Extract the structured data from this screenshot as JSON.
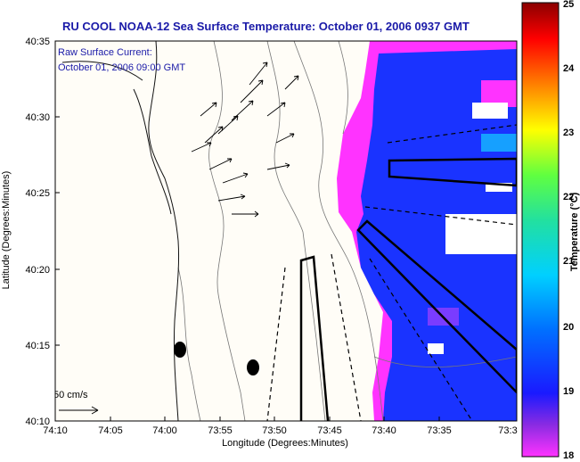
{
  "title": "RU COOL  NOAA-12  Sea Surface Temperature:  October 01, 2006 0937 GMT",
  "current_label_line1": "Raw Surface Current:",
  "current_label_line2": "October 01, 2006 09:00 GMT",
  "scale_label": "50 cm/s",
  "x_axis_label": "Longitude (Degrees:Minutes)",
  "y_axis_label": "Latitude (Degrees:Minutes)",
  "x_ticks": [
    "74:10",
    "74:05",
    "74:00",
    "73:55",
    "73:50",
    "73:45",
    "73:40",
    "73:35",
    "73:3"
  ],
  "y_ticks": [
    "40:35",
    "40:30",
    "40:25",
    "40:20",
    "40:15",
    "40:10"
  ],
  "colorbar": {
    "label": "Temperature (°C)",
    "min": 18,
    "max": 25,
    "ticks": [
      "25",
      "24",
      "23",
      "22",
      "21",
      "20",
      "19",
      "18"
    ]
  },
  "colors": {
    "title": "#1a1aa8",
    "land": "#fffdf7",
    "warm_patch": "#ff33ff",
    "cool_water": "#1a33ff"
  }
}
